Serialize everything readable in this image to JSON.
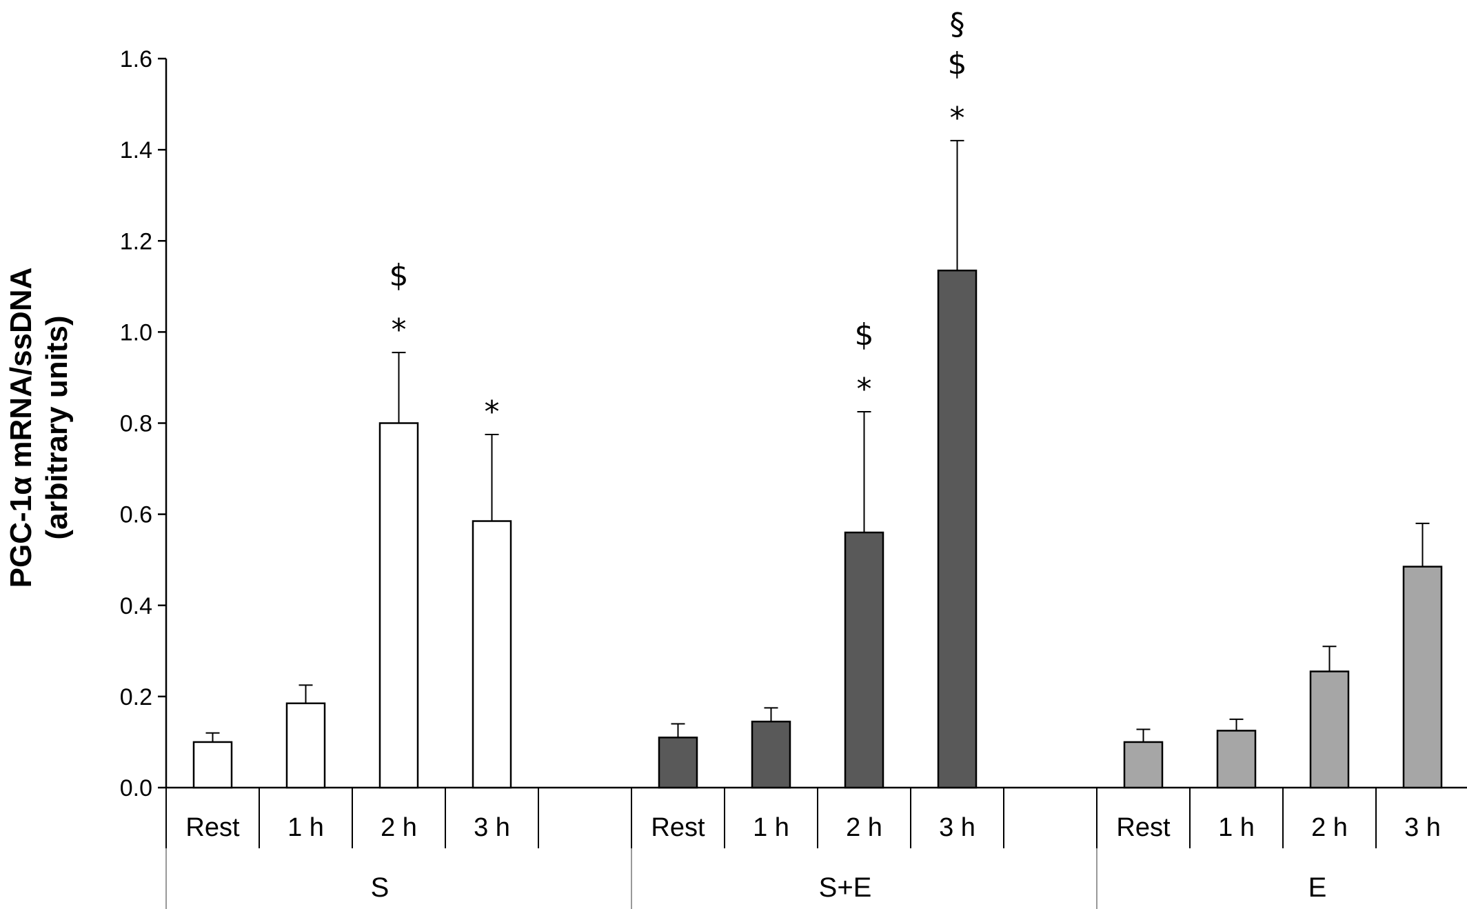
{
  "chart_data": {
    "type": "bar",
    "ylabel_line1": "PGC-1α mRNA/ssDNA",
    "ylabel_line2": "(arbitrary units)",
    "ylim": [
      0,
      1.6
    ],
    "yticks": [
      "0.0",
      "0.2",
      "0.4",
      "0.6",
      "0.8",
      "1.0",
      "1.2",
      "1.4",
      "1.6"
    ],
    "grid": false,
    "groups": [
      {
        "name": "S",
        "color": "#ffffff",
        "bars": [
          {
            "label": "Rest",
            "value": 0.1,
            "error": 0.02,
            "annotations": []
          },
          {
            "label": "1 h",
            "value": 0.185,
            "error": 0.04,
            "annotations": []
          },
          {
            "label": "2 h",
            "value": 0.8,
            "error": 0.155,
            "annotations": [
              "*",
              "$"
            ]
          },
          {
            "label": "3 h",
            "value": 0.585,
            "error": 0.19,
            "annotations": [
              "*"
            ]
          }
        ]
      },
      {
        "name": "S+E",
        "color": "#595959",
        "bars": [
          {
            "label": "Rest",
            "value": 0.11,
            "error": 0.03,
            "annotations": []
          },
          {
            "label": "1 h",
            "value": 0.145,
            "error": 0.03,
            "annotations": []
          },
          {
            "label": "2 h",
            "value": 0.56,
            "error": 0.265,
            "annotations": [
              "*",
              "$"
            ]
          },
          {
            "label": "3 h",
            "value": 1.135,
            "error": 0.285,
            "annotations": [
              "*",
              "$",
              "§"
            ]
          }
        ]
      },
      {
        "name": "E",
        "color": "#a6a6a6",
        "bars": [
          {
            "label": "Rest",
            "value": 0.1,
            "error": 0.028,
            "annotations": []
          },
          {
            "label": "1 h",
            "value": 0.125,
            "error": 0.025,
            "annotations": []
          },
          {
            "label": "2 h",
            "value": 0.255,
            "error": 0.055,
            "annotations": []
          },
          {
            "label": "3 h",
            "value": 0.485,
            "error": 0.095,
            "annotations": []
          }
        ]
      }
    ]
  }
}
